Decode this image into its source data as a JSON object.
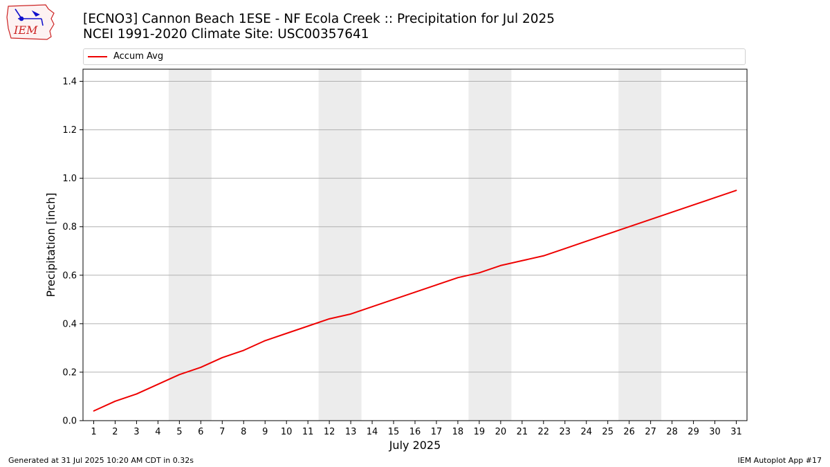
{
  "header": {
    "title_line1": "[ECNO3] Cannon Beach 1ESE - NF Ecola Creek :: Precipitation for Jul 2025",
    "title_line2": "NCEI 1991-2020 Climate Site: USC00357641",
    "logo_text": "IEM"
  },
  "footer": {
    "generated": "Generated at 31 Jul 2025 10:20 AM CDT in 0.32s",
    "app": "IEM Autoplot App #17"
  },
  "colors": {
    "series": "#ee0000",
    "weekend_band": "#ececec",
    "grid": "#b0b0b0"
  },
  "chart_data": {
    "type": "line",
    "title": "[ECNO3] Cannon Beach 1ESE - NF Ecola Creek :: Precipitation for Jul 2025",
    "xlabel": "July 2025",
    "ylabel": "Precipitation [inch]",
    "x": [
      1,
      2,
      3,
      4,
      5,
      6,
      7,
      8,
      9,
      10,
      11,
      12,
      13,
      14,
      15,
      16,
      17,
      18,
      19,
      20,
      21,
      22,
      23,
      24,
      25,
      26,
      27,
      28,
      29,
      30,
      31
    ],
    "xlim": [
      0.5,
      31.5
    ],
    "ylim": [
      0,
      1.45
    ],
    "yticks": [
      0.0,
      0.2,
      0.4,
      0.6,
      0.8,
      1.0,
      1.2,
      1.4
    ],
    "grid": "horizontal",
    "legend_position": "top",
    "shaded_bands": [
      [
        5,
        6
      ],
      [
        12,
        13
      ],
      [
        19,
        20
      ],
      [
        26,
        27
      ]
    ],
    "series": [
      {
        "name": "Accum Avg",
        "values": [
          0.04,
          0.08,
          0.11,
          0.15,
          0.19,
          0.22,
          0.26,
          0.29,
          0.33,
          0.36,
          0.39,
          0.42,
          0.44,
          0.47,
          0.5,
          0.53,
          0.56,
          0.59,
          0.61,
          0.64,
          0.66,
          0.68,
          0.71,
          0.74,
          0.77,
          0.8,
          0.83,
          0.86,
          0.89,
          0.92,
          0.95
        ]
      }
    ]
  }
}
